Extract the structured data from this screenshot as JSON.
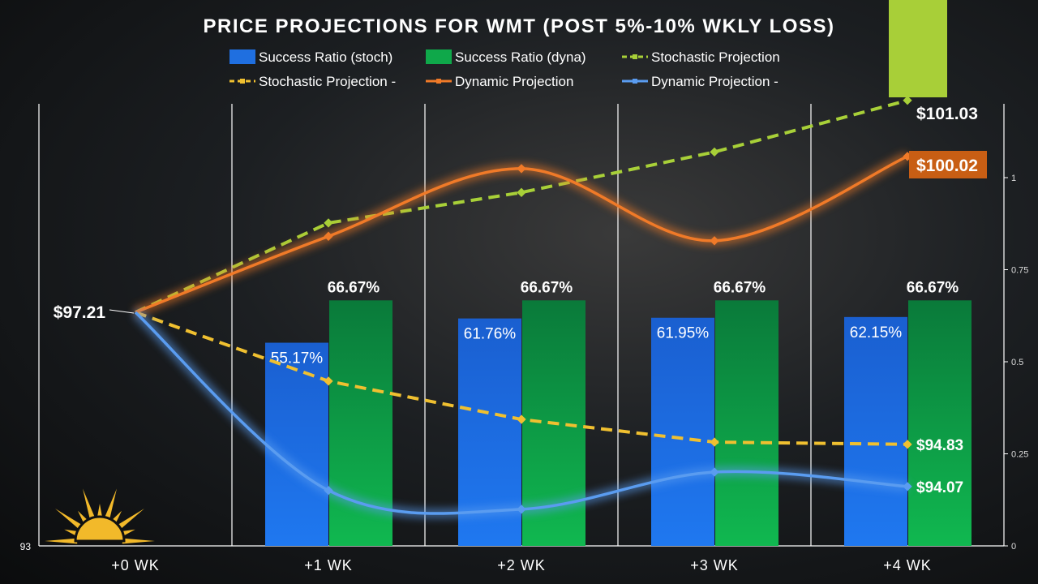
{
  "chart_data": {
    "type": "bar+line",
    "title": "PRICE PROJECTIONS FOR WMT (POST 5%-10% WKLY LOSS)",
    "categories": [
      "+0 WK",
      "+1 WK",
      "+2 WK",
      "+3 WK",
      "+4 WK"
    ],
    "left_axis": {
      "min": 93,
      "tick_labels": [
        "93"
      ]
    },
    "right_axis": {
      "range": [
        0,
        1.2
      ],
      "tick_labels": [
        "0",
        "0.25",
        "0.5",
        "0.75",
        "1"
      ],
      "ticks": [
        0,
        0.25,
        0.5,
        0.75,
        1
      ]
    },
    "legend": [
      "Success Ratio (stoch)",
      "Success Ratio (dyna)",
      "Stochastic Projection",
      "Stochastic Projection -",
      "Dynamic Projection",
      "Dynamic Projection -"
    ],
    "bars": [
      {
        "name": "Success Ratio (stoch)",
        "color": "#1f6fe0",
        "values": [
          null,
          0.5517,
          0.6176,
          0.6195,
          0.6215
        ],
        "labels": [
          "",
          "55.17%",
          "61.76%",
          "61.95%",
          "62.15%"
        ]
      },
      {
        "name": "Success Ratio (dyna)",
        "color": "#0fa84a",
        "values": [
          null,
          0.6667,
          0.6667,
          0.6667,
          0.6667
        ],
        "labels": [
          "",
          "66.67%",
          "66.67%",
          "66.67%",
          "66.67%"
        ]
      }
    ],
    "lines": [
      {
        "name": "Stochastic Projection",
        "color": "#a8d038",
        "dash": true,
        "values": [
          97.21,
          98.82,
          99.37,
          100.1,
          101.03
        ],
        "end_label": "$101.03"
      },
      {
        "name": "Stochastic Projection -",
        "color": "#f0c030",
        "dash": true,
        "values": [
          97.21,
          95.97,
          95.28,
          94.87,
          94.83
        ],
        "end_label": "$94.83"
      },
      {
        "name": "Dynamic Projection",
        "color": "#f07a28",
        "dash": false,
        "values": [
          97.21,
          98.58,
          99.8,
          98.5,
          100.02
        ],
        "end_label": "$100.02"
      },
      {
        "name": "Dynamic Projection -",
        "color": "#5a9cf0",
        "dash": false,
        "values": [
          97.21,
          94.0,
          93.66,
          94.33,
          94.07
        ],
        "end_label": "$94.07"
      }
    ],
    "start_label": "$97.21"
  }
}
